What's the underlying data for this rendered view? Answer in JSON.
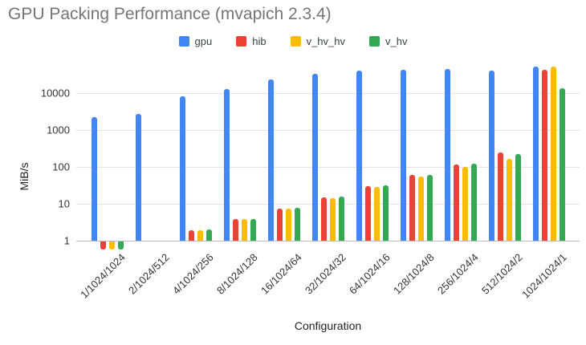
{
  "header": {
    "title": "GPU Packing Performance (mvapich 2.3.4)"
  },
  "chart_data": {
    "type": "bar",
    "title": "GPU Packing Performance (mvapich 2.3.4)",
    "xlabel": "Configuration",
    "ylabel": "MiB/s",
    "y_scale": "log",
    "ylim": [
      0.5,
      60000
    ],
    "y_ticks": [
      1,
      10,
      100,
      1000,
      10000
    ],
    "grid": true,
    "legend_position": "top",
    "categories": [
      "1/1024/1024",
      "2/1024/512",
      "4/1024/256",
      "8/1024/128",
      "16/1024/64",
      "32/1024/32",
      "64/1024/16",
      "128/1024/8",
      "256/1024/4",
      "512/1024/2",
      "1024/1024/1"
    ],
    "series": [
      {
        "name": "gpu",
        "color": "#4285F4",
        "values": [
          2200,
          2700,
          8200,
          13000,
          23500,
          33000,
          40500,
          42500,
          44500,
          40500,
          51000
        ]
      },
      {
        "name": "hib",
        "color": "#EA4335",
        "values": [
          0.6,
          null,
          1.9,
          3.8,
          7.5,
          15,
          30,
          60,
          116,
          245,
          43000
        ]
      },
      {
        "name": "v_hv_hv",
        "color": "#FBBC04",
        "values": [
          0.6,
          null,
          1.9,
          3.8,
          7.5,
          14.5,
          29,
          55,
          100,
          165,
          52000
        ]
      },
      {
        "name": "v_hv",
        "color": "#34A853",
        "values": [
          0.6,
          null,
          2.0,
          3.9,
          7.8,
          15.5,
          31,
          62,
          123,
          222,
          13500
        ]
      }
    ]
  }
}
